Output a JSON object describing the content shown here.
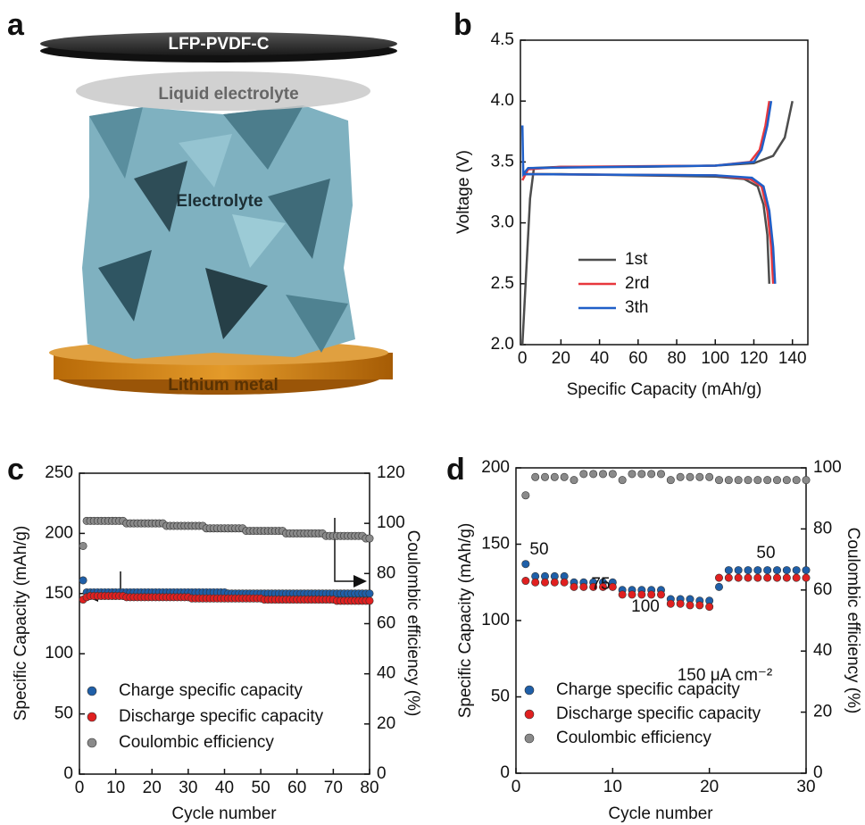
{
  "illustration": {
    "label": "a",
    "texts": {
      "top": "LFP-PVDF-C",
      "liquid": "Liquid electrolyte",
      "middle": "Electrolyte",
      "bottom": "Lithium metal"
    }
  },
  "chart_data": [
    {
      "type": "line",
      "label": "b",
      "xlabel": "Specific Capacity (mAh/g)",
      "ylabel": "Voltage (V)",
      "xlim": [
        -1,
        148
      ],
      "ylim": [
        2,
        4.5
      ],
      "xticks": [
        0,
        20,
        40,
        60,
        80,
        100,
        120,
        140
      ],
      "yticks": [
        {
          "value": 2,
          "label": "2.0"
        },
        {
          "value": 2.5,
          "label": "2.5"
        },
        {
          "value": 3,
          "label": "3.0"
        },
        {
          "value": 3.5,
          "label": "3.5"
        },
        {
          "value": 4,
          "label": "4.0"
        },
        {
          "value": 4.5,
          "label": "4.5"
        }
      ],
      "legend": "lower-left",
      "series": [
        {
          "name": "1st",
          "color": "#4d4d4d",
          "x": [
            0,
            2,
            4,
            6,
            20,
            60,
            100,
            120,
            130,
            136,
            140,
            null,
            0,
            20,
            60,
            100,
            115,
            122,
            125,
            127,
            128
          ],
          "values": [
            2,
            2.6,
            3.2,
            3.45,
            3.46,
            3.46,
            3.47,
            3.49,
            3.55,
            3.7,
            4,
            null,
            3.4,
            3.4,
            3.39,
            3.38,
            3.36,
            3.3,
            3.15,
            2.9,
            2.5
          ]
        },
        {
          "name": "2rd",
          "color": "#e8383d",
          "x": [
            0,
            3,
            20,
            100,
            118,
            123,
            126,
            128,
            null,
            0,
            100,
            118,
            124,
            127,
            129,
            130
          ],
          "values": [
            3.35,
            3.44,
            3.46,
            3.47,
            3.5,
            3.6,
            3.8,
            4,
            null,
            3.4,
            3.39,
            3.36,
            3.3,
            3.1,
            2.8,
            2.5
          ]
        },
        {
          "name": "3th",
          "color": "#1f5fc8",
          "x": [
            0,
            0.5,
            3,
            100,
            120,
            124,
            127,
            129,
            null,
            0,
            100,
            119,
            125,
            128,
            130,
            131
          ],
          "values": [
            3.8,
            3.4,
            3.45,
            3.47,
            3.5,
            3.6,
            3.8,
            4,
            null,
            3.4,
            3.39,
            3.37,
            3.3,
            3.1,
            2.8,
            2.5
          ]
        }
      ]
    },
    {
      "type": "scatter",
      "label": "c",
      "xlabel": "Cycle number",
      "ylabel": "Specific Capacity (mAh/g)",
      "y2label": "Coulombic efficiency (%)",
      "xlim": [
        0,
        80
      ],
      "ylim": [
        0,
        250
      ],
      "y2lim": [
        0,
        120
      ],
      "xticks": [
        0,
        10,
        20,
        30,
        40,
        50,
        60,
        70,
        80
      ],
      "yticks": [
        0,
        50,
        100,
        150,
        200,
        250
      ],
      "y2ticks": [
        0,
        20,
        40,
        60,
        80,
        100,
        120
      ],
      "legend": "lower-left",
      "x": [
        1,
        2,
        3,
        4,
        5,
        6,
        7,
        8,
        9,
        10,
        11,
        12,
        13,
        14,
        15,
        16,
        17,
        18,
        19,
        20,
        21,
        22,
        23,
        24,
        25,
        26,
        27,
        28,
        29,
        30,
        31,
        32,
        33,
        34,
        35,
        36,
        37,
        38,
        39,
        40,
        41,
        42,
        43,
        44,
        45,
        46,
        47,
        48,
        49,
        50,
        51,
        52,
        53,
        54,
        55,
        56,
        57,
        58,
        59,
        60,
        61,
        62,
        63,
        64,
        65,
        66,
        67,
        68,
        69,
        70,
        71,
        72,
        73,
        74,
        75,
        76,
        77,
        78,
        79,
        80
      ],
      "series": [
        {
          "name": "Charge specific capacity",
          "color": "#1f5fa8",
          "values": [
            161,
            151,
            151,
            151,
            151,
            151,
            151,
            151,
            151,
            151,
            151,
            151,
            151,
            151,
            151,
            151,
            151,
            151,
            151,
            151,
            151,
            151,
            151,
            151,
            151,
            151,
            151,
            151,
            151,
            151,
            151,
            151,
            151,
            151,
            151,
            151,
            151,
            151,
            151,
            151,
            150,
            150,
            150,
            150,
            150,
            150,
            150,
            150,
            150,
            150,
            150,
            150,
            150,
            150,
            150,
            150,
            150,
            150,
            150,
            150,
            150,
            150,
            150,
            150,
            150,
            150,
            150,
            150,
            150,
            150,
            150,
            150,
            150,
            150,
            150,
            150,
            150,
            150,
            150,
            150
          ]
        },
        {
          "name": "Discharge specific capacity",
          "color": "#e02020",
          "values": [
            145,
            147,
            148,
            148,
            148,
            148,
            148,
            148,
            148,
            148,
            148,
            148,
            147,
            147,
            147,
            147,
            147,
            147,
            147,
            147,
            147,
            147,
            147,
            147,
            147,
            147,
            147,
            147,
            147,
            147,
            146,
            146,
            146,
            146,
            146,
            146,
            146,
            146,
            146,
            146,
            146,
            146,
            146,
            146,
            146,
            146,
            146,
            146,
            146,
            146,
            145,
            145,
            145,
            145,
            145,
            145,
            145,
            145,
            145,
            145,
            145,
            145,
            145,
            145,
            145,
            145,
            145,
            145,
            145,
            145,
            144,
            144,
            144,
            144,
            144,
            144,
            144,
            144,
            144,
            144
          ]
        },
        {
          "name": "Coulombic efficiency",
          "color": "#8a8a8a",
          "axis": "y2",
          "values": [
            91,
            101,
            101,
            101,
            101,
            101,
            101,
            101,
            101,
            101,
            101,
            101,
            100,
            100,
            100,
            100,
            100,
            100,
            100,
            100,
            100,
            100,
            100,
            99,
            99,
            99,
            99,
            99,
            99,
            99,
            99,
            99,
            99,
            99,
            98,
            98,
            98,
            98,
            98,
            98,
            98,
            98,
            98,
            98,
            98,
            97,
            97,
            97,
            97,
            97,
            97,
            97,
            97,
            97,
            97,
            97,
            96,
            96,
            96,
            96,
            96,
            96,
            96,
            96,
            96,
            96,
            96,
            95,
            95,
            95,
            95,
            95,
            95,
            95,
            95,
            95,
            95,
            95,
            94,
            94
          ]
        }
      ]
    },
    {
      "type": "scatter",
      "label": "d",
      "xlabel": "Cycle number",
      "ylabel": "Specific Capacity (mAh/g)",
      "y2label": "Coulombic efficiency (%)",
      "xlim": [
        0,
        30
      ],
      "ylim": [
        0,
        200
      ],
      "y2lim": [
        0,
        100
      ],
      "xticks": [
        0,
        10,
        20,
        30
      ],
      "yticks": [
        0,
        50,
        100,
        150,
        200
      ],
      "y2ticks": [
        0,
        20,
        40,
        60,
        80,
        100
      ],
      "legend": "lower-left",
      "annotations": [
        "50",
        "75",
        "100",
        "150 μA cm⁻²",
        "50"
      ],
      "x": [
        1,
        2,
        3,
        4,
        5,
        6,
        7,
        8,
        9,
        10,
        11,
        12,
        13,
        14,
        15,
        16,
        17,
        18,
        19,
        20,
        21,
        22,
        23,
        24,
        25,
        26,
        27,
        28,
        29,
        30
      ],
      "series": [
        {
          "name": "Charge specific capacity",
          "color": "#1f5fa8",
          "values": [
            137,
            129,
            129,
            129,
            129,
            125,
            125,
            125,
            125,
            125,
            120,
            120,
            120,
            120,
            120,
            114,
            114,
            114,
            113,
            113,
            122,
            133,
            133,
            133,
            133,
            133,
            133,
            133,
            133,
            133
          ]
        },
        {
          "name": "Discharge specific capacity",
          "color": "#e02020",
          "values": [
            126,
            125,
            125,
            125,
            125,
            122,
            122,
            122,
            122,
            122,
            117,
            117,
            117,
            117,
            117,
            111,
            111,
            110,
            110,
            109,
            128,
            128,
            128,
            128,
            128,
            128,
            128,
            128,
            128,
            128
          ]
        },
        {
          "name": "Coulombic efficiency",
          "color": "#8a8a8a",
          "axis": "y2",
          "values": [
            91,
            97,
            97,
            97,
            97,
            96,
            98,
            98,
            98,
            98,
            96,
            98,
            98,
            98,
            98,
            96,
            97,
            97,
            97,
            97,
            96,
            96,
            96,
            96,
            96,
            96,
            96,
            96,
            96,
            96
          ]
        }
      ]
    }
  ]
}
